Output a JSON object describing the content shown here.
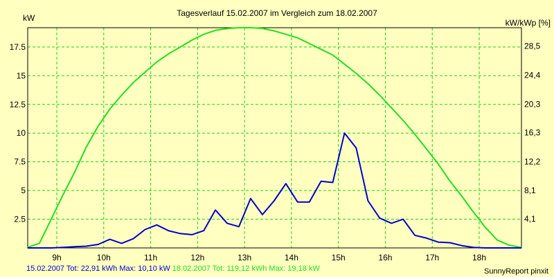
{
  "chart_data": {
    "type": "line",
    "title": "Tagesverlauf 15.02.2007 im Vergleich zum 18.02.2007",
    "y_left_label": "kW",
    "y_right_label": "kW/kWp [%]",
    "x_range": [
      8.38,
      18.9
    ],
    "y_left_range": [
      0,
      19.18
    ],
    "y_right_range": [
      0,
      31.1
    ],
    "x_ticks": [
      {
        "value": 9,
        "label": "9h"
      },
      {
        "value": 10,
        "label": "10h"
      },
      {
        "value": 11,
        "label": "11h"
      },
      {
        "value": 12,
        "label": "12h"
      },
      {
        "value": 13,
        "label": "13h"
      },
      {
        "value": 14,
        "label": "14h"
      },
      {
        "value": 15,
        "label": "15h"
      },
      {
        "value": 16,
        "label": "16h"
      },
      {
        "value": 17,
        "label": "17h"
      },
      {
        "value": 18,
        "label": "18h"
      }
    ],
    "y_left_ticks": [
      {
        "value": 2.5,
        "label": "2.5"
      },
      {
        "value": 5,
        "label": "5"
      },
      {
        "value": 7.5,
        "label": "7.5"
      },
      {
        "value": 10,
        "label": "10"
      },
      {
        "value": 12.5,
        "label": "12.5"
      },
      {
        "value": 15,
        "label": "15"
      },
      {
        "value": 17.5,
        "label": "17.5"
      }
    ],
    "y_right_ticks": [
      {
        "value": 4.1,
        "label": "4,1"
      },
      {
        "value": 8.1,
        "label": "8,1"
      },
      {
        "value": 12.2,
        "label": "12,2"
      },
      {
        "value": 16.3,
        "label": "16,3"
      },
      {
        "value": 20.3,
        "label": "20,3"
      },
      {
        "value": 24.4,
        "label": "24,4"
      },
      {
        "value": 28.5,
        "label": "28,5"
      }
    ],
    "grid": true,
    "series": [
      {
        "name": "18.02.2007",
        "color": "#22dd22",
        "x": [
          8.38,
          8.63,
          8.88,
          9.13,
          9.38,
          9.63,
          9.88,
          10.13,
          10.38,
          10.63,
          10.88,
          11.13,
          11.38,
          11.63,
          11.88,
          12.13,
          12.38,
          12.63,
          12.88,
          13.13,
          13.38,
          13.63,
          13.88,
          14.13,
          14.38,
          14.63,
          14.88,
          15.13,
          15.38,
          15.63,
          15.88,
          16.13,
          16.38,
          16.63,
          16.88,
          17.13,
          17.38,
          17.63,
          17.88,
          18.13,
          18.38,
          18.63,
          18.9
        ],
        "values": [
          0.05,
          0.4,
          2.5,
          4.6,
          6.6,
          8.8,
          10.6,
          12.1,
          13.3,
          14.4,
          15.3,
          16.2,
          16.9,
          17.5,
          18.1,
          18.6,
          18.95,
          19.1,
          19.18,
          19.18,
          19.12,
          18.9,
          18.6,
          18.3,
          17.8,
          17.3,
          16.8,
          16.0,
          15.2,
          14.3,
          13.3,
          12.2,
          11.1,
          9.9,
          8.6,
          7.3,
          5.8,
          4.5,
          3.1,
          1.8,
          0.7,
          0.25,
          0.05
        ]
      },
      {
        "name": "15.02.2007",
        "color": "#0000cc",
        "x": [
          8.38,
          8.63,
          8.88,
          9.13,
          9.38,
          9.63,
          9.88,
          10.13,
          10.38,
          10.63,
          10.88,
          11.13,
          11.38,
          11.63,
          11.88,
          12.13,
          12.38,
          12.63,
          12.88,
          13.13,
          13.38,
          13.63,
          13.88,
          14.13,
          14.38,
          14.63,
          14.88,
          15.13,
          15.38,
          15.63,
          15.88,
          16.13,
          16.38,
          16.63,
          16.88,
          17.13,
          17.38,
          17.63,
          17.88,
          18.13,
          18.38,
          18.63,
          18.9
        ],
        "values": [
          0.0,
          0.0,
          0.0,
          0.05,
          0.1,
          0.15,
          0.3,
          0.75,
          0.4,
          0.8,
          1.6,
          2.0,
          1.5,
          1.25,
          1.15,
          1.5,
          3.3,
          2.15,
          1.85,
          4.3,
          2.9,
          4.1,
          5.6,
          4.0,
          4.0,
          5.8,
          5.7,
          10.0,
          8.7,
          4.1,
          2.6,
          2.15,
          2.5,
          1.1,
          0.85,
          0.5,
          0.45,
          0.2,
          0.05,
          0.0,
          0.0,
          0.0,
          0.0
        ]
      }
    ]
  },
  "footer": {
    "s1_label": "15.02.2007 Tot: 22,91 kWh Max: 10,10 kW",
    "s1_color": "#0000cc",
    "s2_label": "18.02.2007 Tot: 119,12 kWh Max: 19,18 kW",
    "s2_color": "#22dd22",
    "brand": "SunnyReport pinxit"
  }
}
